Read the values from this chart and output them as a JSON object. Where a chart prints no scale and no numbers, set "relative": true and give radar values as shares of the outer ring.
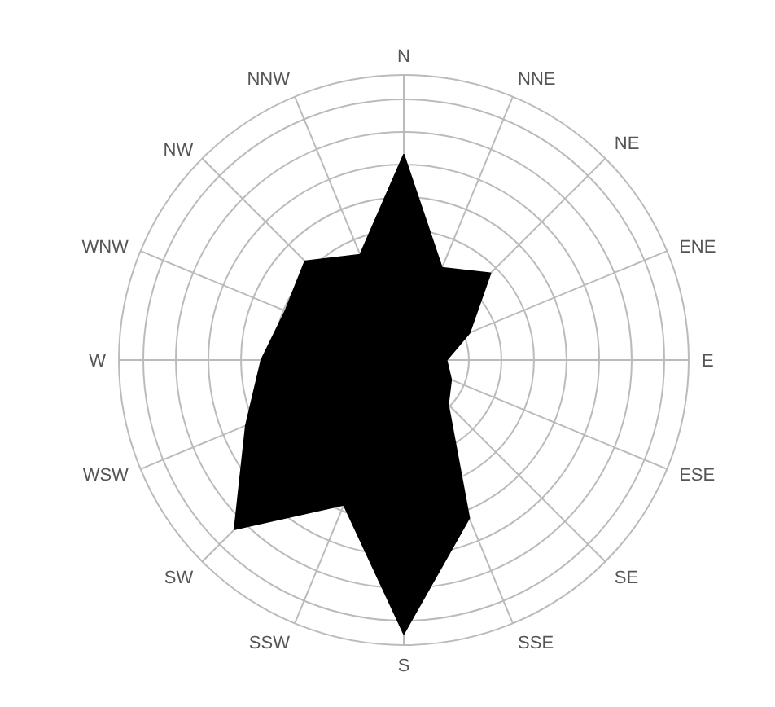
{
  "chart_data": {
    "type": "radar",
    "relative": true,
    "categories": [
      "N",
      "NNE",
      "NE",
      "ENE",
      "E",
      "ESE",
      "SE",
      "SSE",
      "S",
      "SSW",
      "SW",
      "WSW",
      "W",
      "WNW",
      "NW",
      "NNW"
    ],
    "series": [
      {
        "color": "#000000",
        "values": [
          0.72,
          0.35,
          0.43,
          0.25,
          0.15,
          0.18,
          0.22,
          0.6,
          0.96,
          0.55,
          0.84,
          0.6,
          0.5,
          0.45,
          0.49,
          0.4
        ]
      }
    ],
    "grid": true
  }
}
